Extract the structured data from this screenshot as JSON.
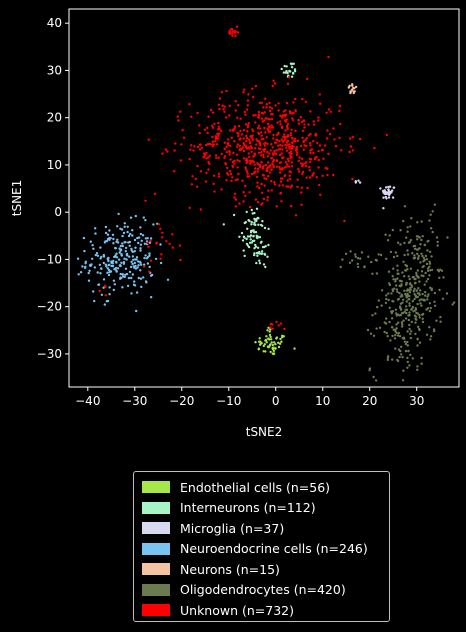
{
  "chart_data": {
    "type": "scatter",
    "xlabel": "tSNE2",
    "ylabel": "tSNE1",
    "xlim": [
      -44,
      39
    ],
    "ylim": [
      -37,
      43
    ],
    "xticks": [
      -40,
      -30,
      -20,
      -10,
      0,
      10,
      20,
      30
    ],
    "yticks": [
      -30,
      -20,
      -10,
      0,
      10,
      20,
      30,
      40
    ],
    "grid": false,
    "legend_position": "below",
    "series": [
      {
        "name": "Endothelial cells (n=56)",
        "color": "#a6e84a",
        "n": 56,
        "clusters": [
          {
            "cx": -1,
            "cy": -28,
            "sx": 1.8,
            "sy": 1.2,
            "n": 52
          },
          {
            "cx": -1,
            "cy": -25,
            "sx": 0.4,
            "sy": 0.4,
            "n": 4
          }
        ]
      },
      {
        "name": "Interneurons (n=112)",
        "color": "#a6f5c6",
        "n": 112,
        "clusters": [
          {
            "cx": -5,
            "cy": -4,
            "sx": 1.5,
            "sy": 3.0,
            "n": 70
          },
          {
            "cx": -3,
            "cy": -9,
            "sx": 1.0,
            "sy": 1.5,
            "n": 20
          },
          {
            "cx": 3,
            "cy": 30,
            "sx": 0.8,
            "sy": 1.0,
            "n": 22
          }
        ]
      },
      {
        "name": "Microglia (n=37)",
        "color": "#d8d8f2",
        "n": 37,
        "clusters": [
          {
            "cx": 24,
            "cy": 4.2,
            "sx": 0.7,
            "sy": 0.8,
            "n": 32
          },
          {
            "cx": 17.5,
            "cy": 6.5,
            "sx": 0.6,
            "sy": 0.3,
            "n": 5
          }
        ]
      },
      {
        "name": "Neuroendocrine cells (n=246)",
        "color": "#78c3ef",
        "n": 246,
        "clusters": [
          {
            "cx": -33,
            "cy": -10,
            "sx": 3.6,
            "sy": 3.8,
            "n": 246
          }
        ]
      },
      {
        "name": "Neurons (n=15)",
        "color": "#f5c39f",
        "n": 15,
        "clusters": [
          {
            "cx": 16.5,
            "cy": 26,
            "sx": 0.6,
            "sy": 0.5,
            "n": 15
          }
        ]
      },
      {
        "name": "Oligodendrocytes (n=420)",
        "color": "#6b7a4f",
        "n": 420,
        "clusters": [
          {
            "cx": 28.5,
            "cy": -18,
            "sx": 3.2,
            "sy": 8.0,
            "n": 400
          },
          {
            "cx": 18,
            "cy": -10,
            "sx": 2.0,
            "sy": 1.5,
            "n": 20
          }
        ]
      },
      {
        "name": "Unknown (n=732)",
        "color": "#ff0000",
        "n": 732,
        "clusters": [
          {
            "cx": -2,
            "cy": 14,
            "sx": 8.0,
            "sy": 5.5,
            "n": 680
          },
          {
            "cx": -9,
            "cy": 38,
            "sx": 0.5,
            "sy": 0.5,
            "n": 20
          },
          {
            "cx": -24,
            "cy": -6,
            "sx": 2.5,
            "sy": 2.5,
            "n": 20
          },
          {
            "cx": 0,
            "cy": -24,
            "sx": 1.0,
            "sy": 0.6,
            "n": 8
          },
          {
            "cx": -37,
            "cy": -17,
            "sx": 0.8,
            "sy": 0.8,
            "n": 4
          }
        ]
      }
    ]
  }
}
